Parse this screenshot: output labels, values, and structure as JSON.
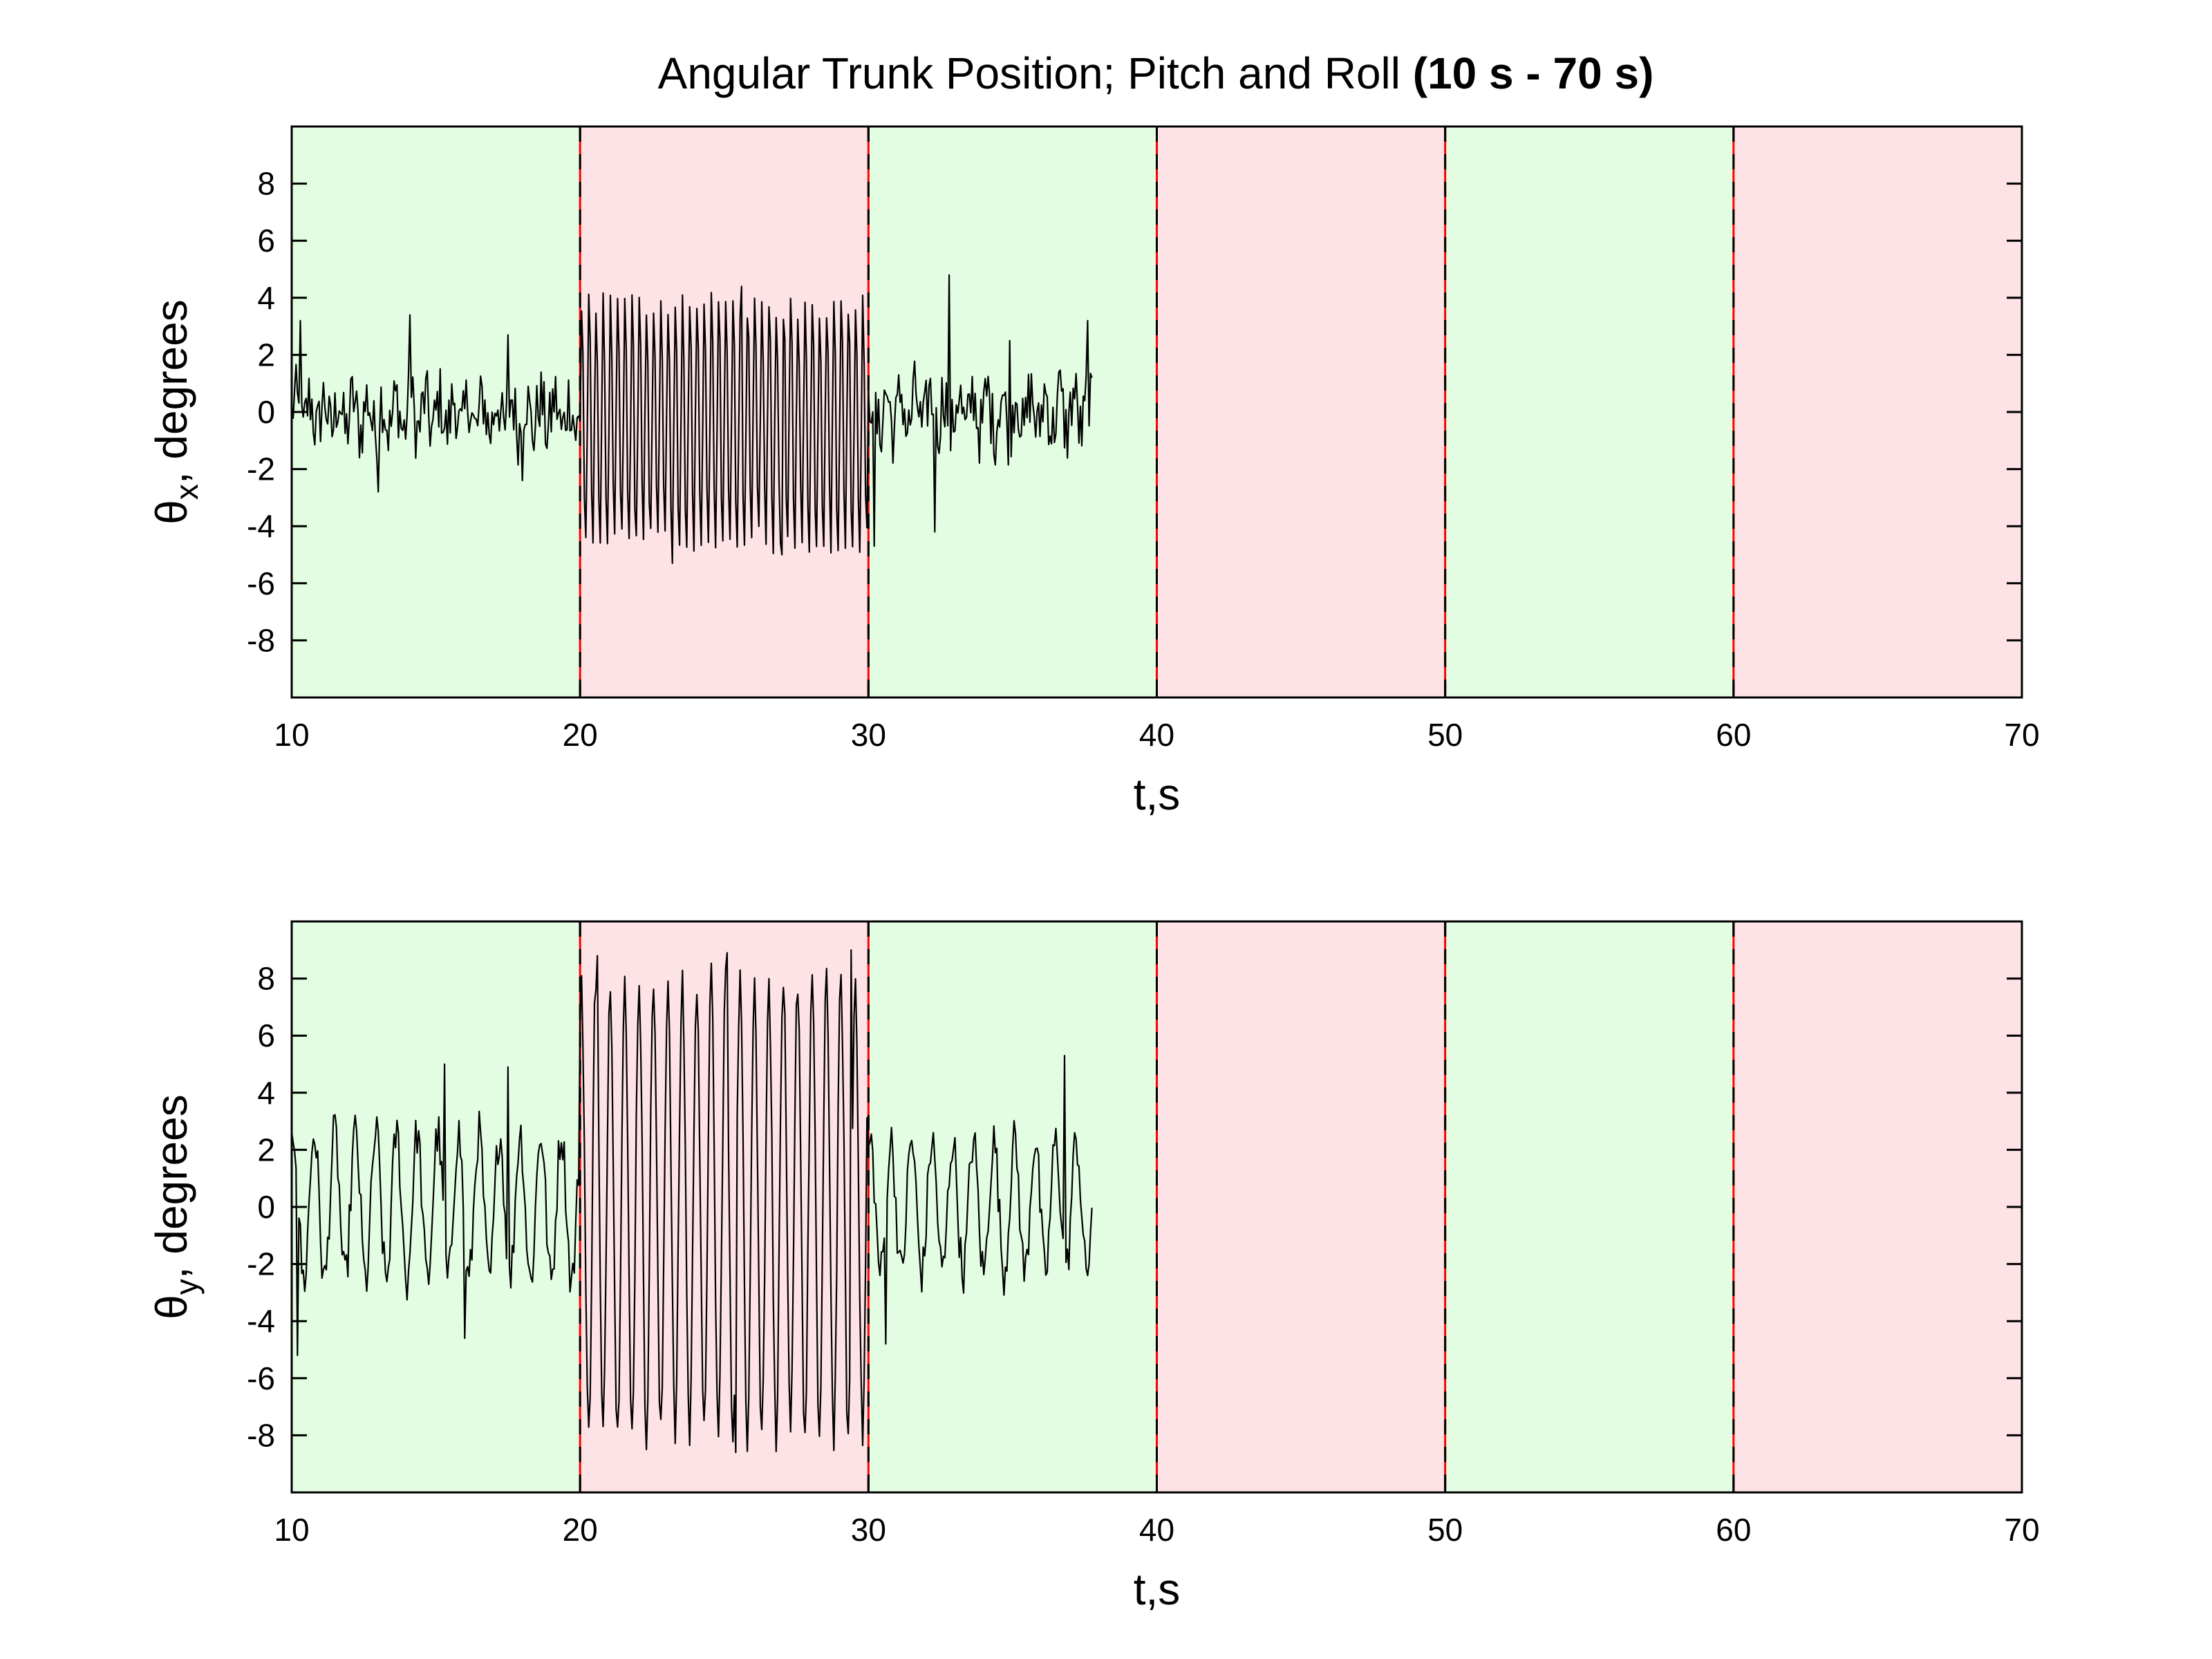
{
  "chart_data": {
    "title": "Angular Trunk Position; Pitch and Roll",
    "title_bold": "(10 s - 70 s)",
    "type": "line",
    "colors": {
      "stable_segment": "#e3fde3",
      "perturbed_segment": "#fde3e5",
      "line": "#000000",
      "divider_red": "#ff0000",
      "divider_dark": "#000000"
    },
    "segments": [
      {
        "x0": 10,
        "x1": 20,
        "kind": "stable"
      },
      {
        "x0": 20,
        "x1": 30,
        "kind": "perturbed"
      },
      {
        "x0": 30,
        "x1": 40,
        "kind": "stable"
      },
      {
        "x0": 40,
        "x1": 50,
        "kind": "perturbed"
      },
      {
        "x0": 50,
        "x1": 60,
        "kind": "stable"
      },
      {
        "x0": 60,
        "x1": 70,
        "kind": "perturbed"
      }
    ],
    "dividers": [
      10,
      20,
      30,
      40,
      50,
      60,
      70
    ],
    "panels": [
      {
        "id": "pitch",
        "ylabel_sym": "θ",
        "ylabel_sub": "x",
        "ylabel_rest": ", degrees",
        "xlabel": "t,s",
        "xlim": [
          10,
          70
        ],
        "ylim": [
          -10,
          10
        ],
        "xticks": [
          "10",
          "20",
          "30",
          "40",
          "50",
          "60",
          "70"
        ],
        "yticks": [
          "8",
          "6",
          "4",
          "2",
          "0",
          "-2",
          "-4",
          "-6",
          "-8"
        ],
        "series": {
          "t_end": 37.8,
          "phases": [
            {
              "t0": 10,
              "t1": 20,
              "mean": -0.1,
              "noise": 1.2,
              "osc_amp": 0.6,
              "osc_freq": 2.0,
              "spikes": [
                [
                  10.3,
                  3.2
                ],
                [
                  13.0,
                  -2.8
                ],
                [
                  14.1,
                  3.4
                ],
                [
                  17.5,
                  2.7
                ],
                [
                  18.0,
                  -2.4
                ]
              ]
            },
            {
              "t0": 20,
              "t1": 30,
              "mean": -0.4,
              "noise": 0.5,
              "osc_amp": 4.3,
              "osc_freq": 4.0,
              "spikes": [
                [
                  23.2,
                  -5.3
                ],
                [
                  25.6,
                  4.4
                ],
                [
                  27.0,
                  -5.0
                ]
              ]
            },
            {
              "t0": 30,
              "t1": 37.8,
              "mean": 0.0,
              "noise": 1.2,
              "osc_amp": 0.7,
              "osc_freq": 2.0,
              "spikes": [
                [
                  30.2,
                  -4.7
                ],
                [
                  32.3,
                  -4.2
                ],
                [
                  32.8,
                  4.8
                ],
                [
                  34.9,
                  2.5
                ],
                [
                  37.6,
                  3.2
                ]
              ]
            }
          ]
        }
      },
      {
        "id": "roll",
        "ylabel_sym": "θ",
        "ylabel_sub": "y",
        "ylabel_rest": ", degrees",
        "xlabel": "t,s",
        "xlim": [
          10,
          70
        ],
        "ylim": [
          -10,
          10
        ],
        "xticks": [
          "10",
          "20",
          "30",
          "40",
          "50",
          "60",
          "70"
        ],
        "yticks": [
          "8",
          "6",
          "4",
          "2",
          "0",
          "-2",
          "-4",
          "-6",
          "-8"
        ],
        "series": {
          "t_end": 37.8,
          "phases": [
            {
              "t0": 10,
              "t1": 20,
              "mean": 0.0,
              "noise": 0.8,
              "osc_amp": 2.6,
              "osc_freq": 1.4,
              "spikes": [
                [
                  10.2,
                  -5.2
                ],
                [
                  15.3,
                  5.0
                ],
                [
                  16.0,
                  -4.6
                ],
                [
                  17.5,
                  4.9
                ]
              ]
            },
            {
              "t0": 20,
              "t1": 30,
              "mean": 0.0,
              "noise": 0.6,
              "osc_amp": 8.0,
              "osc_freq": 2.0,
              "spikes": [
                [
                  20.6,
                  8.8
                ],
                [
                  25.1,
                  8.9
                ],
                [
                  25.4,
                  -8.6
                ],
                [
                  29.4,
                  9.0
                ]
              ]
            },
            {
              "t0": 30,
              "t1": 37.8,
              "mean": 0.0,
              "noise": 0.8,
              "osc_amp": 2.3,
              "osc_freq": 1.4,
              "spikes": [
                [
                  30.6,
                  -4.8
                ],
                [
                  36.8,
                  5.3
                ]
              ]
            }
          ]
        }
      }
    ]
  }
}
